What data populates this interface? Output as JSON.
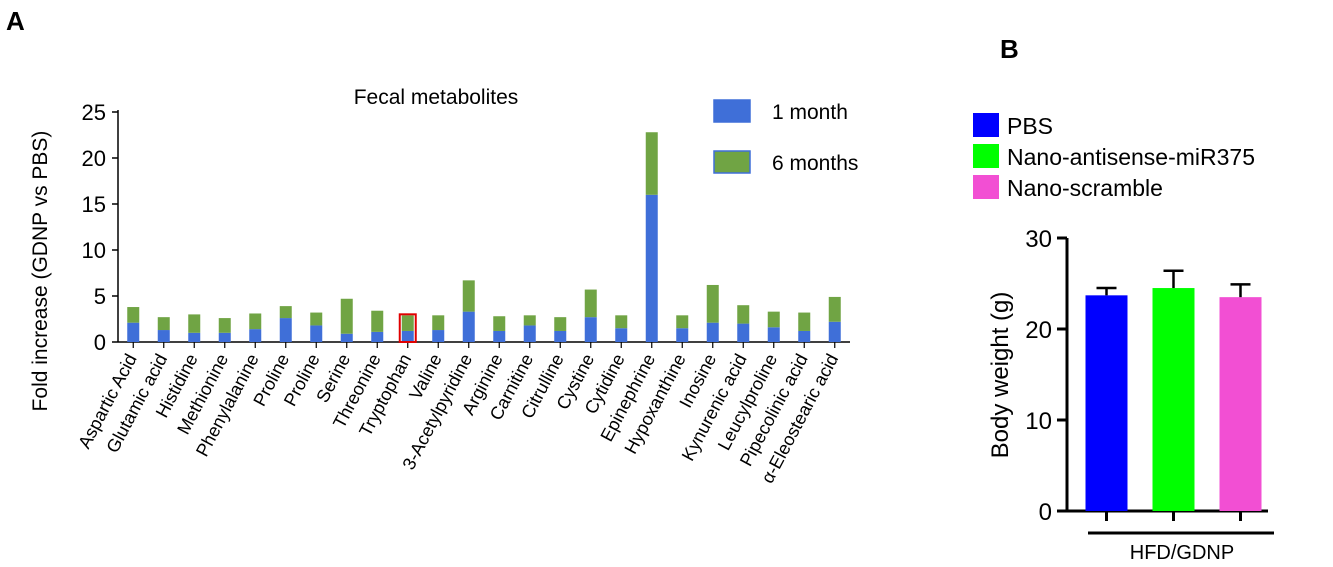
{
  "panel_a_label": "A",
  "panel_b_label": "B",
  "chart_data": [
    {
      "type": "bar",
      "stacked": true,
      "title": "Fecal metabolites",
      "xlabel": "",
      "ylabel": "Fold increase (GDNP vs PBS)",
      "ylim": [
        0,
        25
      ],
      "yticks": [
        0,
        5,
        10,
        15,
        20,
        25
      ],
      "legend_position": "top-right",
      "categories": [
        "Aspartic Acid",
        "Glutamic acid",
        "Histidine",
        "Methionine",
        "Phenylalanine",
        "Proline",
        "Proline",
        "Serine",
        "Threonine",
        "Tryptophan",
        "Valine",
        "3-Acetylpyridine",
        "Arginine",
        "Carnitine",
        "Citrulline",
        "Cystine",
        "Cytidine",
        "Epinephrine",
        "Hypoxanthine",
        "Inosine",
        "Kynurenic acid",
        "Leucylproline",
        "Pipecolinic acid",
        "α-Eleostearic acid"
      ],
      "highlighted_category": "Tryptophan",
      "series": [
        {
          "name": "1 month",
          "color": "#3F6FD8",
          "values": [
            2.1,
            1.3,
            1.0,
            1.0,
            1.4,
            2.6,
            1.8,
            0.9,
            1.1,
            1.2,
            1.3,
            3.3,
            1.2,
            1.8,
            1.2,
            2.7,
            1.5,
            16.0,
            1.5,
            2.1,
            2.0,
            1.6,
            1.2,
            2.2
          ]
        },
        {
          "name": "6 months",
          "color": "#70A444",
          "values": [
            1.7,
            1.4,
            2.0,
            1.6,
            1.7,
            1.3,
            1.4,
            3.8,
            2.3,
            1.7,
            1.6,
            3.4,
            1.6,
            1.1,
            1.5,
            3.0,
            1.4,
            6.8,
            1.4,
            4.1,
            2.0,
            1.7,
            2.0,
            2.7
          ]
        }
      ]
    },
    {
      "type": "bar",
      "title": "",
      "xlabel": "HFD/GDNP",
      "ylabel": "Body weight (g)",
      "ylim": [
        0,
        30
      ],
      "yticks": [
        0,
        10,
        20,
        30
      ],
      "legend_position": "top-left",
      "categories": [
        "PBS",
        "Nano-antisense-miR375",
        "Nano-scramble"
      ],
      "values": [
        23.7,
        24.5,
        23.5
      ],
      "errors": [
        0.8,
        1.9,
        1.4
      ],
      "colors": [
        "#0000FF",
        "#00FF00",
        "#F24FD3"
      ]
    }
  ]
}
